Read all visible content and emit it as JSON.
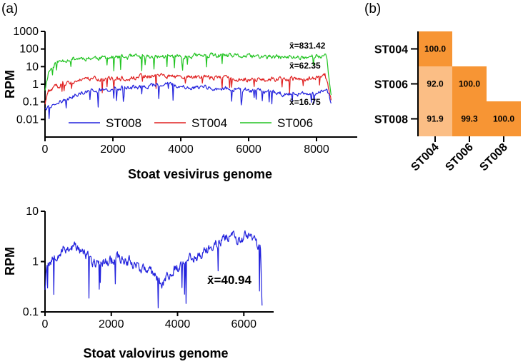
{
  "panel_labels": {
    "a": "(a)",
    "b": "(b)"
  },
  "colors": {
    "ST008": "#2222dd",
    "ST004": "#e02020",
    "ST006": "#22c422",
    "heat_dark": "#f79534",
    "heat_light": "#fbbe85"
  },
  "chart_data": [
    {
      "id": "vesivirus",
      "type": "line",
      "title": "",
      "xlabel": "Stoat vesivirus genome",
      "ylabel": "RPM",
      "yscale": "log",
      "xlim": [
        0,
        9200
      ],
      "ylim": [
        0.001,
        1000
      ],
      "xticks": [
        "0",
        "2000",
        "4000",
        "6000",
        "8000"
      ],
      "xtick_values": [
        0,
        2000,
        4000,
        6000,
        8000
      ],
      "yticks": [
        "1000",
        "100",
        "10",
        "1",
        "0.1",
        "0.01"
      ],
      "ytick_values": [
        1000,
        100,
        10,
        1,
        0.1,
        0.01
      ],
      "legend": [
        "ST008",
        "ST004",
        "ST006"
      ],
      "series": [
        {
          "name": "ST006",
          "color": "#22c422",
          "genome_length": 8430,
          "profile": [
            [
              0,
              0.5
            ],
            [
              100,
              5
            ],
            [
              300,
              15
            ],
            [
              600,
              25
            ],
            [
              1000,
              30
            ],
            [
              2000,
              33
            ],
            [
              3000,
              36
            ],
            [
              4000,
              38
            ],
            [
              5000,
              42
            ],
            [
              6000,
              38
            ],
            [
              7000,
              33
            ],
            [
              7800,
              36
            ],
            [
              8000,
              40
            ],
            [
              8300,
              35
            ],
            [
              8430,
              0.2
            ]
          ]
        },
        {
          "name": "ST004",
          "color": "#e02020",
          "genome_length": 8430,
          "profile": [
            [
              0,
              0.08
            ],
            [
              100,
              0.4
            ],
            [
              300,
              0.7
            ],
            [
              600,
              1.2
            ],
            [
              1200,
              1.8
            ],
            [
              2000,
              2
            ],
            [
              3000,
              2.8
            ],
            [
              3300,
              3.5
            ],
            [
              4000,
              2.5
            ],
            [
              5000,
              2.5
            ],
            [
              6000,
              1.9
            ],
            [
              7000,
              2
            ],
            [
              8000,
              2.2
            ],
            [
              8250,
              3.5
            ],
            [
              8430,
              0.15
            ]
          ]
        },
        {
          "name": "ST008",
          "color": "#2222dd",
          "genome_length": 8430,
          "profile": [
            [
              0,
              0.05
            ],
            [
              300,
              0.05
            ],
            [
              500,
              0.1
            ],
            [
              800,
              0.2
            ],
            [
              1200,
              0.4
            ],
            [
              2000,
              0.6
            ],
            [
              3000,
              0.7
            ],
            [
              3500,
              1.2
            ],
            [
              4000,
              0.8
            ],
            [
              5000,
              0.6
            ],
            [
              6000,
              0.45
            ],
            [
              7000,
              0.3
            ],
            [
              8000,
              0.3
            ],
            [
              8300,
              0.5
            ],
            [
              8430,
              0.1
            ]
          ]
        }
      ],
      "annotations": [
        {
          "text": "x̄=831.42",
          "series": "ST006"
        },
        {
          "text": "x̄=62.35",
          "series": "ST004"
        },
        {
          "text": "x̄=16.75",
          "series": "ST008"
        }
      ]
    },
    {
      "id": "valovirus",
      "type": "line",
      "title": "",
      "xlabel": "Stoat valovirus genome",
      "ylabel": "RPM",
      "yscale": "log",
      "xlim": [
        0,
        6900
      ],
      "ylim": [
        0.1,
        10
      ],
      "xticks": [
        "0",
        "2000",
        "4000",
        "6000"
      ],
      "xtick_values": [
        0,
        2000,
        4000,
        6000
      ],
      "yticks": [
        "10",
        "1",
        "0.1"
      ],
      "ytick_values": [
        10,
        1,
        0.1
      ],
      "series": [
        {
          "name": "ST008",
          "color": "#2222dd",
          "genome_length": 6550,
          "profile": [
            [
              0,
              0.3
            ],
            [
              50,
              0.9
            ],
            [
              300,
              1.3
            ],
            [
              600,
              1.8
            ],
            [
              900,
              2.0
            ],
            [
              1200,
              1.4
            ],
            [
              1500,
              0.9
            ],
            [
              1800,
              1.0
            ],
            [
              2200,
              1.2
            ],
            [
              2600,
              1.0
            ],
            [
              3000,
              0.7
            ],
            [
              3300,
              0.55
            ],
            [
              3500,
              0.35
            ],
            [
              3700,
              0.5
            ],
            [
              4000,
              0.8
            ],
            [
              4300,
              1.1
            ],
            [
              4700,
              1.4
            ],
            [
              5000,
              1.8
            ],
            [
              5300,
              2.6
            ],
            [
              5600,
              3.5
            ],
            [
              5900,
              2.6
            ],
            [
              6200,
              3.6
            ],
            [
              6400,
              2.2
            ],
            [
              6500,
              2.0
            ],
            [
              6550,
              0.16
            ]
          ]
        }
      ],
      "annotations": [
        {
          "text": "x̄=40.94",
          "series": "ST008"
        }
      ]
    },
    {
      "id": "identity",
      "type": "heatmap",
      "rows": [
        "ST004",
        "ST006",
        "ST008"
      ],
      "columns": [
        "ST004",
        "ST006",
        "ST008"
      ],
      "values": [
        [
          100.0,
          null,
          null
        ],
        [
          92.0,
          100.0,
          null
        ],
        [
          91.9,
          99.3,
          100.0
        ]
      ],
      "labels": [
        [
          "100.0",
          "",
          ""
        ],
        [
          "92.0",
          "100.0",
          ""
        ],
        [
          "91.9",
          "99.3",
          "100.0"
        ]
      ]
    }
  ]
}
